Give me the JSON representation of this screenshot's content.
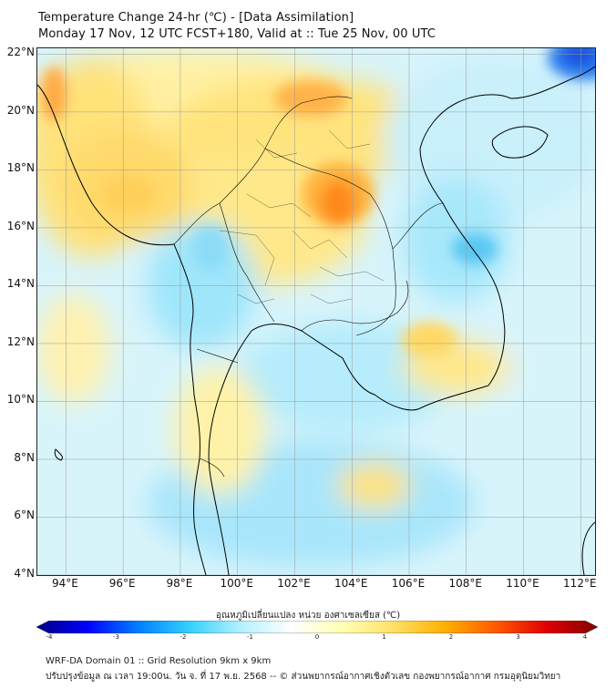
{
  "header": {
    "title_line1": "Temperature Change 24-hr (℃) - [Data Assimilation]",
    "title_line2": "Monday 17 Nov, 12 UTC FCST+180, Valid at :: Tue 25 Nov, 00 UTC"
  },
  "map": {
    "lat_labels": [
      "22°N",
      "20°N",
      "18°N",
      "16°N",
      "14°N",
      "12°N",
      "10°N",
      "8°N",
      "6°N",
      "4°N"
    ],
    "lon_labels": [
      "94°E",
      "96°E",
      "98°E",
      "100°E",
      "102°E",
      "104°E",
      "106°E",
      "108°E",
      "110°E",
      "112°E"
    ],
    "lat_range": [
      4,
      22.2
    ],
    "lon_range": [
      93,
      112.5
    ],
    "boundary_color": "#000000",
    "grid_color": "#9a9a9a"
  },
  "colorbar": {
    "title": "อุณหภูมิเปลี่ยนแปลง หน่วย องศาเซลเซียส (℃)",
    "ticks": [
      "-4",
      "-3",
      "-2",
      "-1",
      "0",
      "1",
      "2",
      "3",
      "4"
    ],
    "range": [
      -4,
      4
    ],
    "colors": [
      "#00007f",
      "#0000ff",
      "#0080ff",
      "#33d1ff",
      "#b3f0ff",
      "#ffffff",
      "#ffffb3",
      "#ffe066",
      "#ffb000",
      "#ff5a00",
      "#e00000",
      "#7f0000"
    ]
  },
  "footer": {
    "line1": "WRF-DA Domain 01 :: Grid Resolution 9km x 9km",
    "line2": "ปรับปรุงข้อมูล ณ เวลา 19:00น. วัน จ. ที่ 17 พ.ย. 2568 -- © ส่วนพยากรณ์อากาศเชิงตัวเลข กองพยากรณ์อากาศ กรมอุตุนิยมวิทยา"
  }
}
